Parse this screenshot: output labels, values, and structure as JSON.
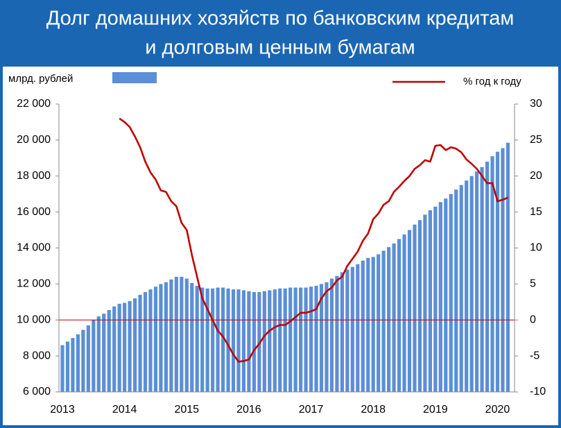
{
  "chart_data": {
    "type": "bar_line",
    "title": [
      "Долг домашних хозяйств по банковским кредитам",
      "и долговым ценным бумагам"
    ],
    "categories": [
      "2013",
      null,
      null,
      null,
      null,
      null,
      null,
      null,
      null,
      null,
      null,
      null,
      "2014",
      null,
      null,
      null,
      null,
      null,
      null,
      null,
      null,
      null,
      null,
      null,
      "2015",
      null,
      null,
      null,
      null,
      null,
      null,
      null,
      null,
      null,
      null,
      null,
      "2016",
      null,
      null,
      null,
      null,
      null,
      null,
      null,
      null,
      null,
      null,
      null,
      "2017",
      null,
      null,
      null,
      null,
      null,
      null,
      null,
      null,
      null,
      null,
      null,
      "2018",
      null,
      null,
      null,
      null,
      null,
      null,
      null,
      null,
      null,
      null,
      null,
      "2019",
      null,
      null,
      null,
      null,
      null,
      null,
      null,
      null,
      null,
      null,
      null,
      "2020",
      null,
      null
    ],
    "series": [
      {
        "name": "млрд. рублей",
        "color": "#5b8fd6",
        "type": "bar",
        "axis": "y",
        "values": [
          8600,
          8800,
          9000,
          9200,
          9450,
          9700,
          10000,
          10200,
          10350,
          10550,
          10750,
          10900,
          10950,
          11050,
          11200,
          11400,
          11550,
          11700,
          11850,
          12000,
          12100,
          12250,
          12400,
          12400,
          12300,
          12050,
          11900,
          11800,
          11750,
          11750,
          11800,
          11800,
          11750,
          11700,
          11700,
          11650,
          11600,
          11550,
          11550,
          11600,
          11650,
          11700,
          11750,
          11750,
          11800,
          11800,
          11800,
          11800,
          11850,
          11900,
          12000,
          12100,
          12300,
          12450,
          12650,
          12800,
          12950,
          13100,
          13300,
          13450,
          13500,
          13650,
          13850,
          14050,
          14250,
          14500,
          14750,
          15000,
          15300,
          15550,
          15850,
          16100,
          16300,
          16550,
          16750,
          17000,
          17250,
          17500,
          17750,
          18000,
          18250,
          18500,
          18800,
          19100,
          19350,
          19550,
          19850
        ]
      },
      {
        "name": "% год к году",
        "color": "#c00000",
        "type": "line",
        "axis": "y2",
        "values": [
          null,
          null,
          null,
          null,
          null,
          null,
          null,
          null,
          null,
          null,
          null,
          28,
          27.5,
          26.8,
          25.5,
          24,
          22,
          20.5,
          19.5,
          18,
          17.8,
          16.5,
          15.8,
          13.5,
          12.5,
          9,
          6,
          3,
          1.5,
          0,
          -1.5,
          -2.3,
          -3.5,
          -4.8,
          -5.8,
          -5.7,
          -5.5,
          -4.2,
          -3.3,
          -2.2,
          -1.5,
          -1,
          -0.7,
          -0.7,
          -0.2,
          0.4,
          1,
          1,
          1.2,
          1.5,
          3,
          4,
          4.5,
          5.5,
          6,
          7.5,
          8.5,
          9.5,
          11,
          12,
          14,
          14.8,
          16,
          16.5,
          17.8,
          18.5,
          19.3,
          20,
          21,
          21.5,
          22.2,
          22,
          24.2,
          24.3,
          23.6,
          24,
          23.8,
          23.3,
          22.3,
          21.7,
          21,
          20,
          19,
          19,
          16.5,
          16.7,
          17
        ]
      }
    ],
    "ylim": [
      6000,
      22000
    ],
    "yticks": [
      {
        "value": 6000,
        "label": "6 000"
      },
      {
        "value": 8000,
        "label": "8 000"
      },
      {
        "value": 10000,
        "label": "10 000"
      },
      {
        "value": 12000,
        "label": "12 000"
      },
      {
        "value": 14000,
        "label": "14 000"
      },
      {
        "value": 16000,
        "label": "16 000"
      },
      {
        "value": 18000,
        "label": "18 000"
      },
      {
        "value": 20000,
        "label": "20 000"
      },
      {
        "value": 22000,
        "label": "22 000"
      }
    ],
    "y2lim": [
      -10,
      30
    ],
    "y2ticks": [
      -10,
      -5,
      0,
      5,
      10,
      15,
      20,
      25,
      30
    ]
  }
}
